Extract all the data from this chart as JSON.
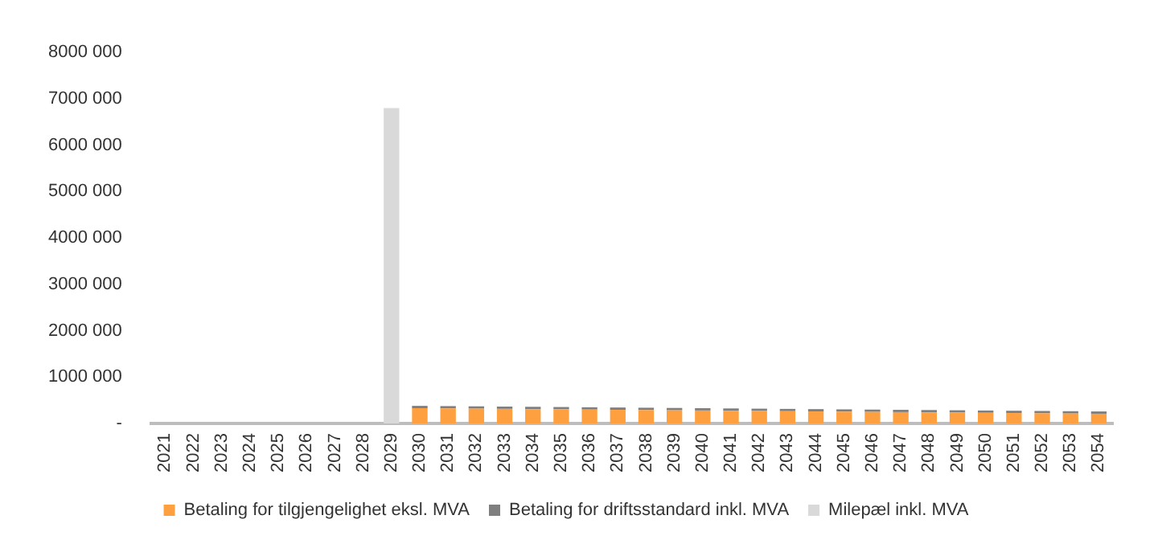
{
  "chart_data": {
    "type": "bar",
    "stacked": true,
    "categories": [
      "2021",
      "2022",
      "2023",
      "2024",
      "2025",
      "2026",
      "2027",
      "2028",
      "2029",
      "2030",
      "2031",
      "2032",
      "2033",
      "2034",
      "2035",
      "2036",
      "2037",
      "2038",
      "2039",
      "2040",
      "2041",
      "2042",
      "2043",
      "2044",
      "2045",
      "2046",
      "2047",
      "2048",
      "2049",
      "2050",
      "2051",
      "2052",
      "2053",
      "2054"
    ],
    "series": [
      {
        "name": "Betaling for tilgjengelighet eksl. MVA",
        "color": "#ffa040",
        "values": [
          null,
          null,
          null,
          null,
          null,
          null,
          null,
          null,
          null,
          330000,
          325000,
          320000,
          315000,
          310000,
          305000,
          300000,
          295000,
          290000,
          285000,
          280000,
          275000,
          270000,
          265000,
          260000,
          255000,
          250000,
          245000,
          240000,
          235000,
          230000,
          225000,
          220000,
          215000,
          210000
        ]
      },
      {
        "name": "Betaling for driftsstandard inkl. MVA",
        "color": "#7f7f7f",
        "values": [
          null,
          null,
          null,
          null,
          null,
          null,
          null,
          null,
          null,
          50000,
          50000,
          50000,
          50000,
          50000,
          50000,
          50000,
          50000,
          50000,
          50000,
          50000,
          50000,
          50000,
          50000,
          50000,
          50000,
          50000,
          50000,
          50000,
          50000,
          50000,
          50000,
          50000,
          50000,
          50000
        ]
      },
      {
        "name": "Milepæl inkl. MVA",
        "color": "#d9d9d9",
        "values": [
          null,
          null,
          null,
          null,
          null,
          null,
          null,
          null,
          6800000,
          null,
          null,
          null,
          null,
          null,
          null,
          null,
          null,
          null,
          null,
          null,
          null,
          null,
          null,
          null,
          null,
          null,
          null,
          null,
          null,
          null,
          null,
          null,
          null,
          null
        ]
      }
    ],
    "ylim": [
      0,
      8000000
    ],
    "yticks": [
      {
        "value": 0,
        "label": "-"
      },
      {
        "value": 1000000,
        "label": "1000 000"
      },
      {
        "value": 2000000,
        "label": "2000 000"
      },
      {
        "value": 3000000,
        "label": "3000 000"
      },
      {
        "value": 4000000,
        "label": "4000 000"
      },
      {
        "value": 5000000,
        "label": "5000 000"
      },
      {
        "value": 6000000,
        "label": "6000 000"
      },
      {
        "value": 7000000,
        "label": "7000 000"
      },
      {
        "value": 8000000,
        "label": "8000 000"
      }
    ],
    "grid": false,
    "legend": "bottom"
  }
}
